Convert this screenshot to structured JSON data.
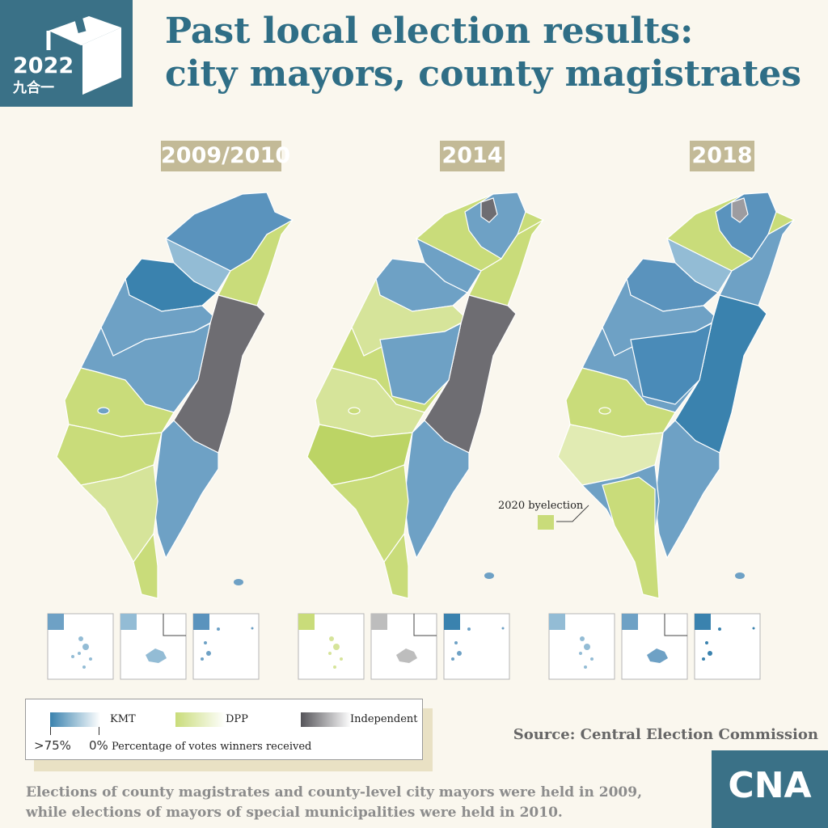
{
  "logo": {
    "year": "2022",
    "subtitle": "九合一",
    "icon": "ballot-box-icon"
  },
  "title_line1": "Past local election results:",
  "title_line2": "city mayors, county magistrates",
  "maps": [
    {
      "year": "2009/2010"
    },
    {
      "year": "2014",
      "annotation": "2020 byelection"
    },
    {
      "year": "2018"
    }
  ],
  "colors": {
    "kmt": "#3a82ae",
    "dpp": "#c9dc7a",
    "independent": "#6e6d72",
    "accent": "#3a7187",
    "year_label_bg": "#c3ba97"
  },
  "legend": {
    "kmt": "KMT",
    "dpp": "DPP",
    "independent": "Independent",
    "scale_max": ">75%",
    "scale_min": "0%",
    "caption": "Percentage of votes winners received"
  },
  "source": "Source: Central Election Commission",
  "footnote_line1": "Elections of county magistrates and county-level city mayors were held in 2009,",
  "footnote_line2": "while elections of mayors of special municipalities were held in 2010.",
  "brand": {
    "name": "CNA"
  }
}
